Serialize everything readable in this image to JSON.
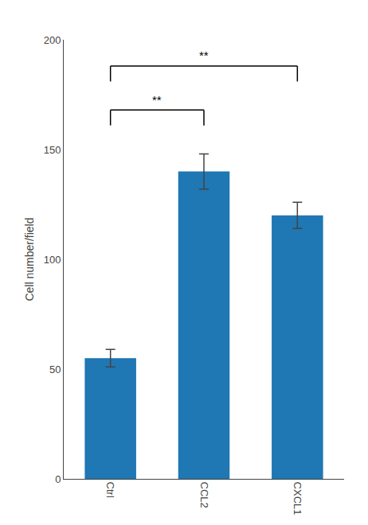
{
  "chart_data": {
    "type": "bar",
    "categories": [
      "Ctrl",
      "CCL2",
      "CXCL1"
    ],
    "values": [
      55,
      140,
      120
    ],
    "errors": [
      4,
      8,
      6
    ],
    "ylabel": "Cell number/field",
    "ylim": [
      0,
      200
    ],
    "yticks": [
      0,
      50,
      100,
      150,
      200
    ],
    "grid": false,
    "significance": [
      {
        "x1": "Ctrl",
        "x2": "CCL2",
        "y_base": 161,
        "y_top": 168,
        "label": "**",
        "label_y": 169
      },
      {
        "x1": "Ctrl",
        "x2": "CXCL1",
        "y_base": 181,
        "y_top": 188,
        "label": "**",
        "label_y": 189
      }
    ]
  }
}
